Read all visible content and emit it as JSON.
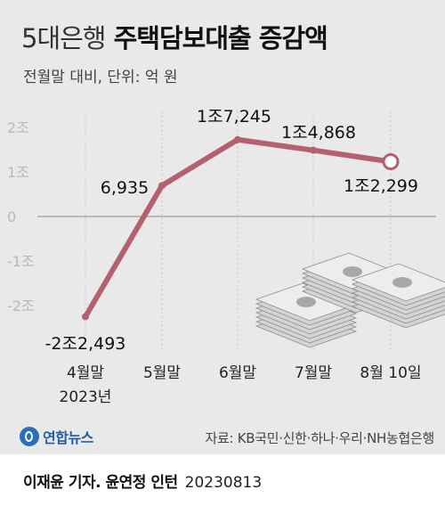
{
  "title": {
    "light": "5대은행",
    "bold": "주택담보대출 증감액"
  },
  "subtitle": "전월말 대비, 단위: 억 원",
  "chart_data": {
    "type": "line",
    "title": "5대은행 주택담보대출 증감액",
    "subtitle": "전월말 대비, 단위: 억 원",
    "categories": [
      "4월말 2023년",
      "5월말",
      "6월말",
      "7월말",
      "8월 10일"
    ],
    "category_labels": [
      {
        "line1": "4월말",
        "line2": "2023년"
      },
      {
        "line1": "5월말",
        "line2": ""
      },
      {
        "line1": "6월말",
        "line2": ""
      },
      {
        "line1": "7월말",
        "line2": ""
      },
      {
        "line1": "8월 10일",
        "line2": ""
      }
    ],
    "values": [
      -22493,
      6935,
      17245,
      14868,
      12299
    ],
    "data_labels": [
      "-2조2,493",
      "6,935",
      "1조7,245",
      "1조4,868",
      "1조2,299"
    ],
    "ylim": [
      -20000,
      20000
    ],
    "yticks": [
      {
        "value": 20000,
        "label": "2조"
      },
      {
        "value": 10000,
        "label": "1조"
      },
      {
        "value": 0,
        "label": "0"
      },
      {
        "value": -10000,
        "label": "-1조"
      },
      {
        "value": -20000,
        "label": "-2조"
      }
    ],
    "grid": true,
    "line_color": "#b5606e"
  },
  "footer": {
    "logo_text": "연합뉴스",
    "source": "자료: KB국민·신한·하나·우리·NH농협은행",
    "credit_names": "이재윤 기자. 윤연정 인턴",
    "credit_date": "20230813"
  }
}
